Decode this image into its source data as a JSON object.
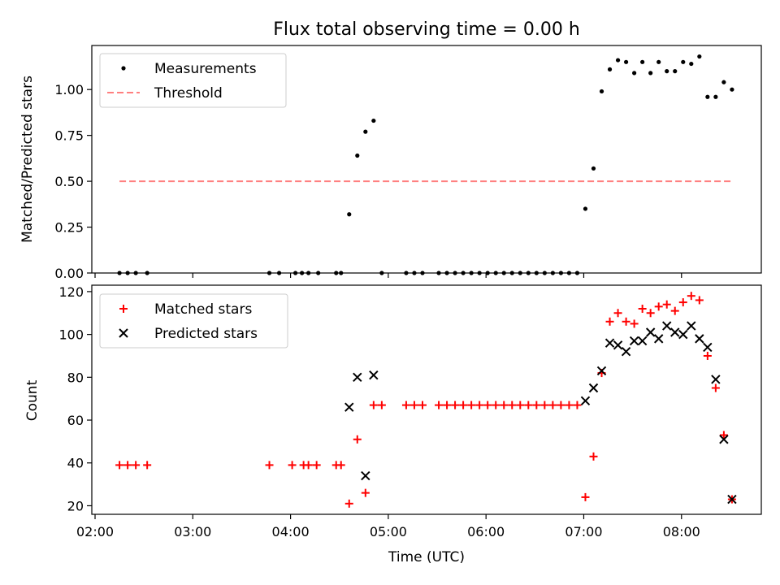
{
  "colors": {
    "matched": "#ff0000",
    "predicted": "#000000",
    "measurement": "#000000",
    "threshold": "#ff7f7f",
    "axes": "#000000"
  },
  "chart_data": [
    {
      "type": "scatter",
      "title": "Flux total observing time = 0.00 h",
      "xlabel": "",
      "ylabel": "Matched/Predicted stars",
      "ylim": [
        0,
        1.24
      ],
      "yticks": [
        "0.00",
        "0.25",
        "0.50",
        "0.75",
        "1.00"
      ],
      "legend_position": "upper-left",
      "series": [
        {
          "name": "Measurements",
          "marker": "dot",
          "x": [
            "02:15",
            "02:20",
            "02:25",
            "02:32",
            "03:47",
            "03:53",
            "04:03",
            "04:07",
            "04:11",
            "04:17",
            "04:28",
            "04:31",
            "04:36",
            "04:41",
            "04:46",
            "04:51",
            "04:56",
            "05:11",
            "05:16",
            "05:21",
            "05:31",
            "05:36",
            "05:41",
            "05:46",
            "05:51",
            "05:56",
            "06:01",
            "06:06",
            "06:11",
            "06:16",
            "06:21",
            "06:26",
            "06:31",
            "06:36",
            "06:41",
            "06:46",
            "06:51",
            "06:56",
            "07:01",
            "07:06",
            "07:11",
            "07:16",
            "07:21",
            "07:26",
            "07:31",
            "07:36",
            "07:41",
            "07:46",
            "07:51",
            "07:56",
            "08:01",
            "08:06",
            "08:11",
            "08:16",
            "08:21",
            "08:26",
            "08:31"
          ],
          "y": [
            0,
            0,
            0,
            0,
            0,
            0,
            0,
            0,
            0,
            0,
            0,
            0,
            0.32,
            0.64,
            0.77,
            0.83,
            0,
            0,
            0,
            0,
            0,
            0,
            0,
            0,
            0,
            0,
            0,
            0,
            0,
            0,
            0,
            0,
            0,
            0,
            0,
            0,
            0,
            0,
            0.35,
            0.57,
            0.99,
            1.11,
            1.16,
            1.15,
            1.09,
            1.15,
            1.09,
            1.15,
            1.1,
            1.1,
            1.15,
            1.14,
            1.18,
            0.96,
            0.96,
            1.04,
            1.0
          ]
        },
        {
          "name": "Threshold",
          "style": "dashed",
          "x": [
            "02:15",
            "08:31"
          ],
          "y": [
            0.5,
            0.5
          ]
        }
      ]
    },
    {
      "type": "scatter",
      "xlabel": "Time (UTC)",
      "ylabel": "Count",
      "ylim": [
        16,
        123
      ],
      "yticks": [
        "20",
        "40",
        "60",
        "80",
        "100",
        "120"
      ],
      "xticks": [
        "02:00",
        "03:00",
        "04:00",
        "05:00",
        "06:00",
        "07:00",
        "08:00"
      ],
      "xlim": [
        "01:58",
        "08:49"
      ],
      "legend_position": "upper-left",
      "series": [
        {
          "name": "Matched stars",
          "marker": "plus",
          "x": [
            "02:15",
            "02:20",
            "02:25",
            "02:32",
            "03:47",
            "04:01",
            "04:08",
            "04:11",
            "04:16",
            "04:28",
            "04:31",
            "04:36",
            "04:41",
            "04:46",
            "04:51",
            "04:56",
            "05:11",
            "05:16",
            "05:21",
            "05:31",
            "05:36",
            "05:41",
            "05:46",
            "05:51",
            "05:56",
            "06:01",
            "06:06",
            "06:11",
            "06:16",
            "06:21",
            "06:26",
            "06:31",
            "06:36",
            "06:41",
            "06:46",
            "06:51",
            "06:56",
            "07:01",
            "07:06",
            "07:11",
            "07:16",
            "07:21",
            "07:26",
            "07:31",
            "07:36",
            "07:41",
            "07:46",
            "07:51",
            "07:56",
            "08:01",
            "08:06",
            "08:11",
            "08:16",
            "08:21",
            "08:26",
            "08:31"
          ],
          "y": [
            39,
            39,
            39,
            39,
            39,
            39,
            39,
            39,
            39,
            39,
            39,
            21,
            51,
            26,
            67,
            67,
            67,
            67,
            67,
            67,
            67,
            67,
            67,
            67,
            67,
            67,
            67,
            67,
            67,
            67,
            67,
            67,
            67,
            67,
            67,
            67,
            67,
            24,
            43,
            82,
            106,
            110,
            106,
            105,
            112,
            110,
            113,
            114,
            111,
            115,
            118,
            116,
            90,
            75,
            53,
            23
          ]
        },
        {
          "name": "Predicted stars",
          "marker": "x",
          "x": [
            "04:36",
            "04:41",
            "04:46",
            "04:51",
            "07:01",
            "07:06",
            "07:11",
            "07:16",
            "07:21",
            "07:26",
            "07:31",
            "07:36",
            "07:41",
            "07:46",
            "07:51",
            "07:56",
            "08:01",
            "08:06",
            "08:11",
            "08:16",
            "08:21",
            "08:26",
            "08:31"
          ],
          "y": [
            66,
            80,
            34,
            81,
            69,
            75,
            83,
            96,
            95,
            92,
            97,
            97,
            101,
            98,
            104,
            101,
            100,
            104,
            98,
            94,
            79,
            51,
            23
          ]
        }
      ]
    }
  ]
}
